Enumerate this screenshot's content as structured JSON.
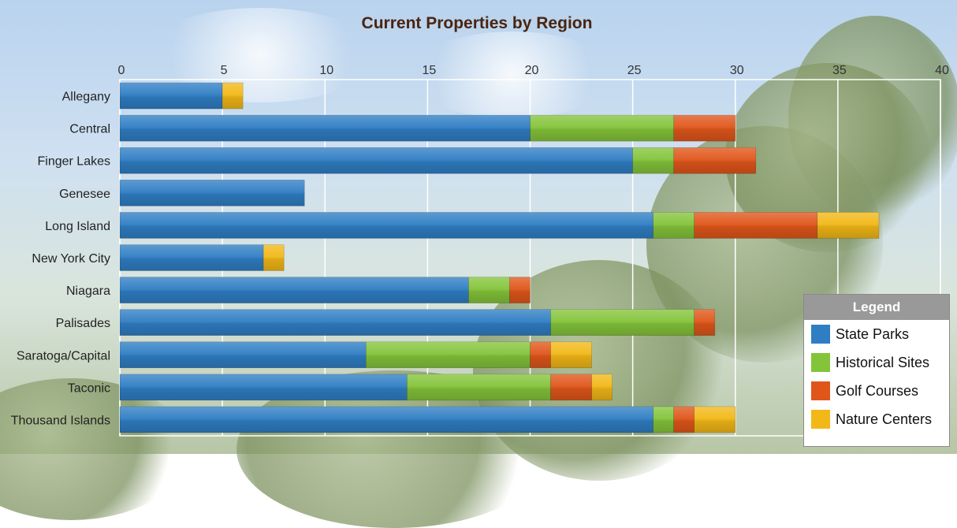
{
  "chart_data": {
    "type": "bar",
    "orientation": "horizontal",
    "stacked": true,
    "title": "Current Properties by Region",
    "categories": [
      "Allegany",
      "Central",
      "Finger Lakes",
      "Genesee",
      "Long Island",
      "New York City",
      "Niagara",
      "Palisades",
      "Saratoga/Capital",
      "Taconic",
      "Thousand Islands"
    ],
    "series": [
      {
        "name": "State Parks",
        "color": "#2f7ec4",
        "values": [
          5,
          20,
          25,
          9,
          26,
          7,
          17,
          21,
          12,
          14,
          26
        ]
      },
      {
        "name": "Historical Sites",
        "color": "#84c43a",
        "values": [
          0,
          7,
          2,
          0,
          2,
          0,
          2,
          7,
          8,
          7,
          1
        ]
      },
      {
        "name": "Golf Courses",
        "color": "#e0561a",
        "values": [
          0,
          3,
          4,
          0,
          6,
          0,
          1,
          1,
          1,
          2,
          1
        ]
      },
      {
        "name": "Nature Centers",
        "color": "#f2b817",
        "values": [
          1,
          0,
          0,
          0,
          3,
          1,
          0,
          0,
          2,
          1,
          2
        ]
      }
    ],
    "x_ticks": [
      "0",
      "5",
      "10",
      "15",
      "20",
      "25",
      "30",
      "35",
      "40"
    ],
    "xlim": [
      0,
      40
    ],
    "grid": true,
    "legend_title": "Legend",
    "legend_position": "bottom-right"
  }
}
